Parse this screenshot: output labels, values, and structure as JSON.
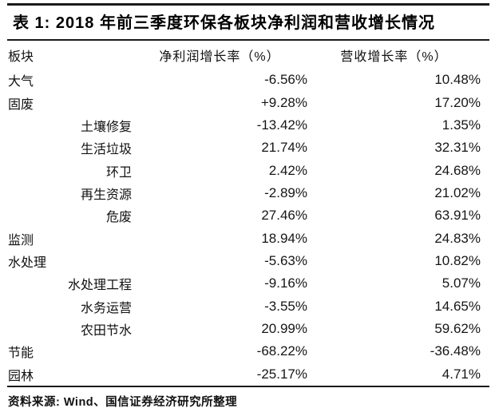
{
  "table": {
    "title": "表 1: 2018 年前三季度环保各板块净利润和营收增长情况",
    "columns": {
      "sector": "板块",
      "profit": "净利润增长率（%）",
      "revenue": "营收增长率（%）"
    },
    "rows": [
      {
        "label": "大气",
        "sub": false,
        "profit": "-6.56%",
        "revenue": "10.48%"
      },
      {
        "label": "固废",
        "sub": false,
        "profit": "+9.28%",
        "revenue": "17.20%"
      },
      {
        "label": "土壤修复",
        "sub": true,
        "profit": "-13.42%",
        "revenue": "1.35%"
      },
      {
        "label": "生活垃圾",
        "sub": true,
        "profit": "21.74%",
        "revenue": "32.31%"
      },
      {
        "label": "环卫",
        "sub": true,
        "profit": "2.42%",
        "revenue": "24.68%"
      },
      {
        "label": "再生资源",
        "sub": true,
        "profit": "-2.89%",
        "revenue": "21.02%"
      },
      {
        "label": "危废",
        "sub": true,
        "profit": "27.46%",
        "revenue": "63.91%"
      },
      {
        "label": "监测",
        "sub": false,
        "profit": "18.94%",
        "revenue": "24.83%"
      },
      {
        "label": "水处理",
        "sub": false,
        "profit": "-5.63%",
        "revenue": "10.82%"
      },
      {
        "label": "水处理工程",
        "sub": true,
        "profit": "-9.16%",
        "revenue": "5.07%"
      },
      {
        "label": "水务运营",
        "sub": true,
        "profit": "-3.55%",
        "revenue": "14.65%"
      },
      {
        "label": "农田节水",
        "sub": true,
        "profit": "20.99%",
        "revenue": "59.62%"
      },
      {
        "label": "节能",
        "sub": false,
        "profit": "-68.22%",
        "revenue": "-36.48%"
      },
      {
        "label": "园林",
        "sub": false,
        "profit": "-25.17%",
        "revenue": "4.71%"
      }
    ],
    "source": "资料来源: Wind、国信证券经济研究所整理"
  },
  "colors": {
    "rule": "#1a1a1a",
    "text": "#111111",
    "title": "#000000",
    "background": "#ffffff"
  }
}
